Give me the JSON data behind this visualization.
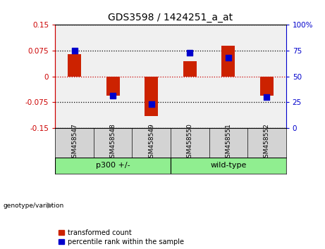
{
  "title": "GDS3598 / 1424251_a_at",
  "samples": [
    "GSM458547",
    "GSM458548",
    "GSM458549",
    "GSM458550",
    "GSM458551",
    "GSM458552"
  ],
  "red_values": [
    0.065,
    -0.055,
    -0.115,
    0.045,
    0.09,
    -0.055
  ],
  "blue_values": [
    0.075,
    -0.055,
    -0.08,
    0.068,
    0.055,
    -0.06
  ],
  "ylim": [
    -0.15,
    0.15
  ],
  "yticks_left": [
    -0.15,
    -0.075,
    0,
    0.075,
    0.15
  ],
  "yticks_right": [
    0,
    25,
    50,
    75,
    100
  ],
  "left_axis_color": "#CC0000",
  "right_axis_color": "#0000CC",
  "zero_line_color": "#CC0000",
  "bar_color": "#CC2200",
  "dot_color": "#0000CC",
  "plot_bg": "#F0F0F0",
  "sample_bg": "#D3D3D3",
  "group_bg": "#90EE90",
  "legend_red_label": "transformed count",
  "legend_blue_label": "percentile rank within the sample",
  "bar_width": 0.35,
  "dot_size": 28,
  "title_fontsize": 10,
  "tick_fontsize": 7.5,
  "sample_fontsize": 6.5,
  "group_fontsize": 8,
  "legend_fontsize": 7,
  "groups": [
    {
      "label": "p300 +/-",
      "start": 0,
      "end": 2
    },
    {
      "label": "wild-type",
      "start": 3,
      "end": 5
    }
  ]
}
